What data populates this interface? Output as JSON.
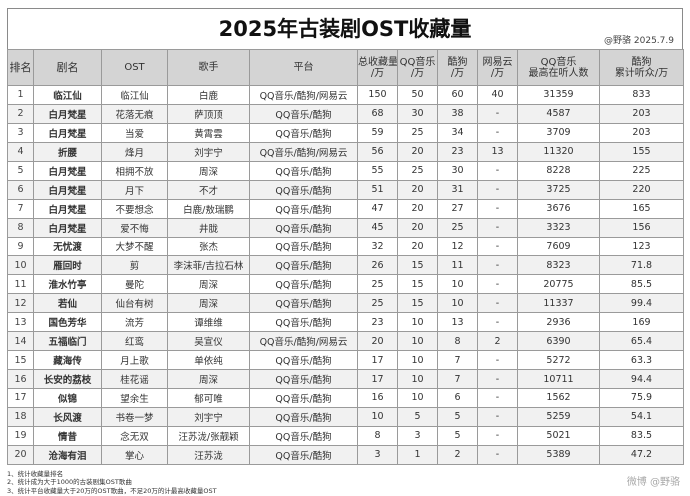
{
  "title": "2025年古装剧OST收藏量",
  "stamp": "@野骆 2025.7.9",
  "headers": {
    "idx": "排名",
    "drama": "剧名",
    "ost": "OST",
    "singer": "歌手",
    "platform": "平台",
    "total": [
      "总收藏量",
      "/万"
    ],
    "qq": [
      "QQ音乐",
      "/万"
    ],
    "kugou": [
      "酷狗",
      "/万"
    ],
    "netease": [
      "网易云",
      "/万"
    ],
    "qqpeak": [
      "QQ音乐",
      "最高在听人数"
    ],
    "kugou_listen": [
      "酷狗",
      "累计听众/万"
    ]
  },
  "rows": [
    {
      "idx": "1",
      "drama": "临江仙",
      "ost": "临江仙",
      "singer": "白鹿",
      "platform": "QQ音乐/酷狗/网易云",
      "total": "150",
      "qq": "50",
      "kugou": "60",
      "netease": "40",
      "qqpeak": "31359",
      "kugou_listen": "833"
    },
    {
      "idx": "2",
      "drama": "白月梵星",
      "ost": "花落无痕",
      "singer": "萨顶顶",
      "platform": "QQ音乐/酷狗",
      "total": "68",
      "qq": "30",
      "kugou": "38",
      "netease": "-",
      "qqpeak": "4587",
      "kugou_listen": "203"
    },
    {
      "idx": "3",
      "drama": "白月梵星",
      "ost": "当爱",
      "singer": "黄霄雲",
      "platform": "QQ音乐/酷狗",
      "total": "59",
      "qq": "25",
      "kugou": "34",
      "netease": "-",
      "qqpeak": "3709",
      "kugou_listen": "203"
    },
    {
      "idx": "4",
      "drama": "折腰",
      "ost": "烽月",
      "singer": "刘宇宁",
      "platform": "QQ音乐/酷狗/网易云",
      "total": "56",
      "qq": "20",
      "kugou": "23",
      "netease": "13",
      "qqpeak": "11320",
      "kugou_listen": "155"
    },
    {
      "idx": "5",
      "drama": "白月梵星",
      "ost": "相拥不放",
      "singer": "周深",
      "platform": "QQ音乐/酷狗",
      "total": "55",
      "qq": "25",
      "kugou": "30",
      "netease": "-",
      "qqpeak": "8228",
      "kugou_listen": "225"
    },
    {
      "idx": "6",
      "drama": "白月梵星",
      "ost": "月下",
      "singer": "不才",
      "platform": "QQ音乐/酷狗",
      "total": "51",
      "qq": "20",
      "kugou": "31",
      "netease": "-",
      "qqpeak": "3725",
      "kugou_listen": "220"
    },
    {
      "idx": "7",
      "drama": "白月梵星",
      "ost": "不要想念",
      "singer": "白鹿/敖瑞鹏",
      "platform": "QQ音乐/酷狗",
      "total": "47",
      "qq": "20",
      "kugou": "27",
      "netease": "-",
      "qqpeak": "3676",
      "kugou_listen": "165"
    },
    {
      "idx": "8",
      "drama": "白月梵星",
      "ost": "爱不悔",
      "singer": "井胧",
      "platform": "QQ音乐/酷狗",
      "total": "45",
      "qq": "20",
      "kugou": "25",
      "netease": "-",
      "qqpeak": "3323",
      "kugou_listen": "156"
    },
    {
      "idx": "9",
      "drama": "无忧渡",
      "ost": "大梦不醒",
      "singer": "张杰",
      "platform": "QQ音乐/酷狗",
      "total": "32",
      "qq": "20",
      "kugou": "12",
      "netease": "-",
      "qqpeak": "7609",
      "kugou_listen": "123"
    },
    {
      "idx": "10",
      "drama": "雁回时",
      "ost": "剪",
      "singer": "李沫菲/吉拉石林",
      "platform": "QQ音乐/酷狗",
      "total": "26",
      "qq": "15",
      "kugou": "11",
      "netease": "-",
      "qqpeak": "8323",
      "kugou_listen": "71.8"
    },
    {
      "idx": "11",
      "drama": "淮水竹亭",
      "ost": "曼陀",
      "singer": "周深",
      "platform": "QQ音乐/酷狗",
      "total": "25",
      "qq": "15",
      "kugou": "10",
      "netease": "-",
      "qqpeak": "20775",
      "kugou_listen": "85.5"
    },
    {
      "idx": "12",
      "drama": "若仙",
      "ost": "仙台有树",
      "singer": "周深",
      "platform": "QQ音乐/酷狗",
      "total": "25",
      "qq": "15",
      "kugou": "10",
      "netease": "-",
      "qqpeak": "11337",
      "kugou_listen": "99.4"
    },
    {
      "idx": "13",
      "drama": "国色芳华",
      "ost": "流芳",
      "singer": "谭维维",
      "platform": "QQ音乐/酷狗",
      "total": "23",
      "qq": "10",
      "kugou": "13",
      "netease": "-",
      "qqpeak": "2936",
      "kugou_listen": "169"
    },
    {
      "idx": "14",
      "drama": "五福临门",
      "ost": "红鸾",
      "singer": "吴宣仪",
      "platform": "QQ音乐/酷狗/网易云",
      "total": "20",
      "qq": "10",
      "kugou": "8",
      "netease": "2",
      "qqpeak": "6390",
      "kugou_listen": "65.4"
    },
    {
      "idx": "15",
      "drama": "藏海传",
      "ost": "月上歌",
      "singer": "单依纯",
      "platform": "QQ音乐/酷狗",
      "total": "17",
      "qq": "10",
      "kugou": "7",
      "netease": "-",
      "qqpeak": "5272",
      "kugou_listen": "63.3"
    },
    {
      "idx": "16",
      "drama": "长安的荔枝",
      "ost": "桂花谣",
      "singer": "周深",
      "platform": "QQ音乐/酷狗",
      "total": "17",
      "qq": "10",
      "kugou": "7",
      "netease": "-",
      "qqpeak": "10711",
      "kugou_listen": "94.4"
    },
    {
      "idx": "17",
      "drama": "似锦",
      "ost": "望余生",
      "singer": "郁可唯",
      "platform": "QQ音乐/酷狗",
      "total": "16",
      "qq": "10",
      "kugou": "6",
      "netease": "-",
      "qqpeak": "1562",
      "kugou_listen": "75.9"
    },
    {
      "idx": "18",
      "drama": "长风渡",
      "ost": "书卷一梦",
      "singer": "刘宇宁",
      "platform": "QQ音乐/酷狗",
      "total": "10",
      "qq": "5",
      "kugou": "5",
      "netease": "-",
      "qqpeak": "5259",
      "kugou_listen": "54.1"
    },
    {
      "idx": "19",
      "drama": "情昔",
      "ost": "念无双",
      "singer": "汪苏泷/张靓颖",
      "platform": "QQ音乐/酷狗",
      "total": "8",
      "qq": "3",
      "kugou": "5",
      "netease": "-",
      "qqpeak": "5021",
      "kugou_listen": "83.5"
    },
    {
      "idx": "20",
      "drama": "沧海有泪",
      "ost": "掌心",
      "singer": "汪苏泷",
      "platform": "QQ音乐/酷狗",
      "total": "3",
      "qq": "1",
      "kugou": "2",
      "netease": "-",
      "qqpeak": "5389",
      "kugou_listen": "47.2"
    }
  ],
  "notes": [
    "1、统计收藏量排名",
    "2、统计成为大于1000的古装剧集OST歌曲",
    "3、统计平台收藏量大于20万的OST歌曲，不足20万的计最高收藏量OST"
  ],
  "watermark": "微博 @野骆"
}
